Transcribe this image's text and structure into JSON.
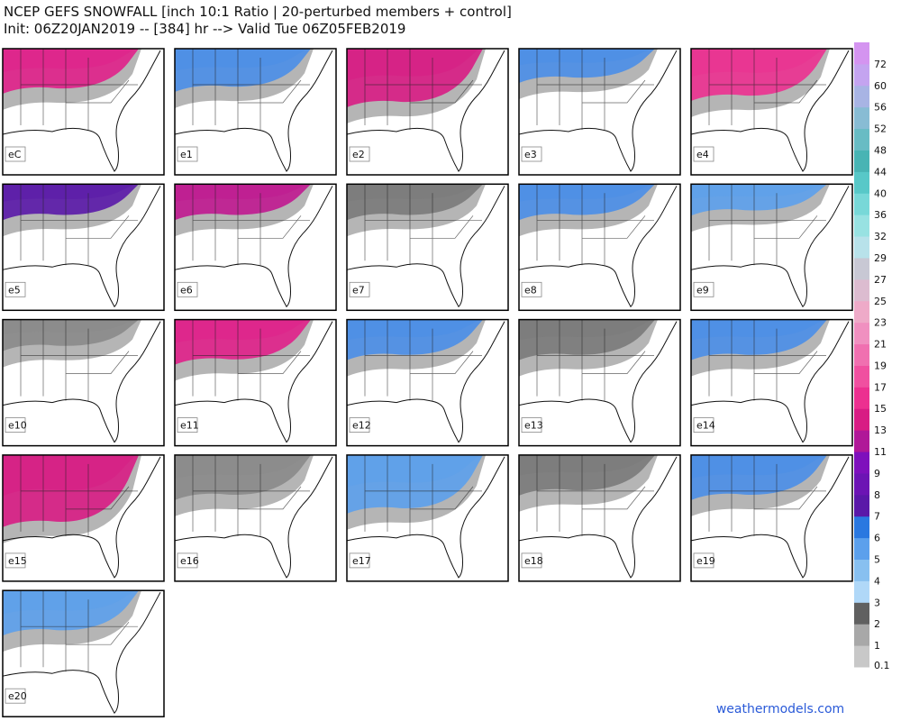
{
  "header": {
    "title": "NCEP GEFS SNOWFALL [inch 10:1 Ratio | 20-perturbed members + control]",
    "subtitle": "Init: 06Z20JAN2019 -- [384] hr --> Valid Tue 06Z05FEB2019"
  },
  "panels": [
    {
      "label": "eC"
    },
    {
      "label": "e1"
    },
    {
      "label": "e2"
    },
    {
      "label": "e3"
    },
    {
      "label": "e4"
    },
    {
      "label": "e5"
    },
    {
      "label": "e6"
    },
    {
      "label": "e7"
    },
    {
      "label": "e8"
    },
    {
      "label": "e9"
    },
    {
      "label": "e10"
    },
    {
      "label": "e11"
    },
    {
      "label": "e12"
    },
    {
      "label": "e13"
    },
    {
      "label": "e14"
    },
    {
      "label": "e15"
    },
    {
      "label": "e16"
    },
    {
      "label": "e17"
    },
    {
      "label": "e18"
    },
    {
      "label": "e19"
    },
    {
      "label": "e20"
    }
  ],
  "colorbar": {
    "levels": [
      0.1,
      1,
      2,
      3,
      4,
      5,
      6,
      7,
      8,
      9,
      11,
      13,
      15,
      17,
      19,
      21,
      23,
      25,
      27,
      29,
      32,
      36,
      40,
      44,
      48,
      52,
      56,
      60,
      72
    ],
    "colors": [
      "#c8c8c8",
      "#a8a8a8",
      "#606060",
      "#b0d8f8",
      "#88c0f0",
      "#5ca0ec",
      "#2a78e0",
      "#5a18a8",
      "#6c14b4",
      "#7e10bc",
      "#b01898",
      "#d81c84",
      "#ec3090",
      "#f050a0",
      "#f070b0",
      "#f090c0",
      "#eeaac8",
      "#dcbcd0",
      "#c8c8d4",
      "#b8e2ea",
      "#98e2e2",
      "#78d8d8",
      "#58c8c8",
      "#48b4b4",
      "#68bcc4",
      "#88bcd4",
      "#a8b4e4",
      "#c4a4f0",
      "#d494f0"
    ]
  },
  "footer": {
    "credit": "weathermodels.com"
  }
}
